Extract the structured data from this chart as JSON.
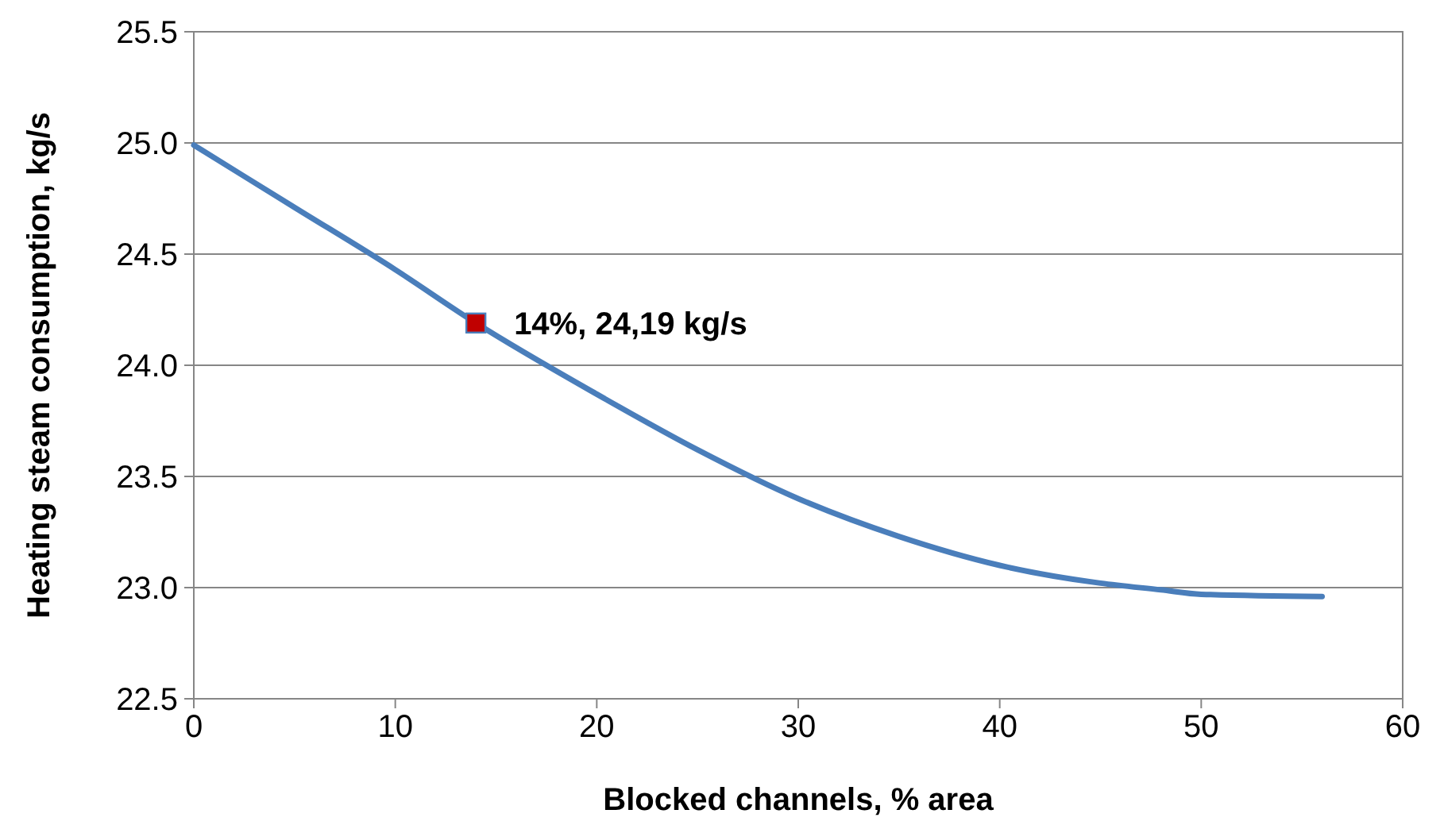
{
  "chart_data": {
    "type": "line",
    "xlabel": "Blocked channels, % area",
    "ylabel": "Heating steam consumption, kg/s",
    "xlim": [
      0,
      60
    ],
    "xticks": [
      0,
      10,
      20,
      30,
      40,
      50,
      60
    ],
    "ylim": [
      22.5,
      25.5
    ],
    "yticks": [
      {
        "value": 22.5,
        "label": "22.5"
      },
      {
        "value": 23,
        "label": "23.0"
      },
      {
        "value": 23.5,
        "label": "23.5"
      },
      {
        "value": 24,
        "label": "24.0"
      },
      {
        "value": 24.5,
        "label": "24.5"
      },
      {
        "value": 25,
        "label": "25.0"
      },
      {
        "value": 25.5,
        "label": "25.5"
      }
    ],
    "grid": "y",
    "series": [
      {
        "color": "#4a7ebb",
        "marker": "none",
        "line_style": "solid",
        "x": [
          0,
          5,
          10,
          14,
          20,
          25,
          30,
          35,
          40,
          45,
          48,
          50,
          56
        ],
        "values": [
          24.99,
          24.71,
          24.43,
          24.19,
          23.87,
          23.62,
          23.4,
          23.23,
          23.1,
          23.02,
          22.99,
          22.97,
          22.96
        ]
      },
      {
        "type": "scatter",
        "color": "#c00000",
        "marker": "square",
        "x": [
          14
        ],
        "values": [
          24.19
        ]
      }
    ],
    "annotations": [
      {
        "text": "14%, 24,19 kg/s",
        "x": 14,
        "y": 24.19
      }
    ]
  }
}
